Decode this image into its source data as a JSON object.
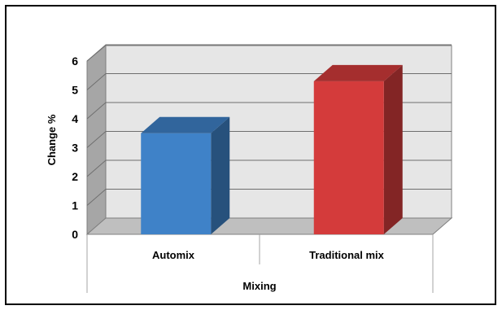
{
  "chart_data": {
    "type": "bar",
    "categories": [
      "Automix",
      "Traditional mix"
    ],
    "values": [
      3.5,
      5.3
    ],
    "colors": [
      "#3f82c8",
      "#d43b3b"
    ],
    "xlabel": "Mixing",
    "ylabel": "Change %",
    "ylim": [
      0,
      6
    ],
    "yticks": [
      "0",
      "1",
      "2",
      "3",
      "4",
      "5",
      "6"
    ],
    "grid": true,
    "style": "3d"
  }
}
